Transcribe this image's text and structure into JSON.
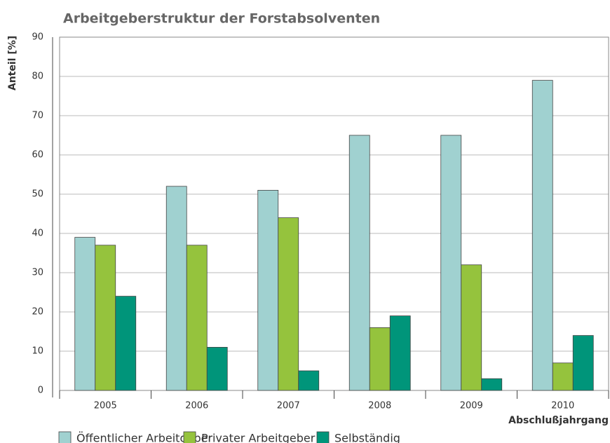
{
  "chart_data": {
    "type": "bar",
    "title": "Arbeitgeberstruktur der Forstabsolventen",
    "ylabel": "Anteil [%]",
    "xlabel": "Abschlußjahrgang",
    "categories": [
      "2005",
      "2006",
      "2007",
      "2008",
      "2009",
      "2010"
    ],
    "series": [
      {
        "name": "Öffentlicher Arbeitgeber",
        "color": "#a0d1d0",
        "values": [
          39,
          52,
          51,
          65,
          65,
          79
        ]
      },
      {
        "name": "Privater Arbeitgeber",
        "color": "#95c33d",
        "values": [
          37,
          37,
          44,
          16,
          32,
          7
        ]
      },
      {
        "name": "Selbständig",
        "color": "#00957a",
        "values": [
          24,
          11,
          5,
          19,
          3,
          14
        ]
      }
    ],
    "ylim": [
      0,
      90
    ],
    "yticks": [
      0,
      10,
      20,
      30,
      40,
      50,
      60,
      70,
      80,
      90
    ],
    "grid": true,
    "legend": "bottom"
  }
}
